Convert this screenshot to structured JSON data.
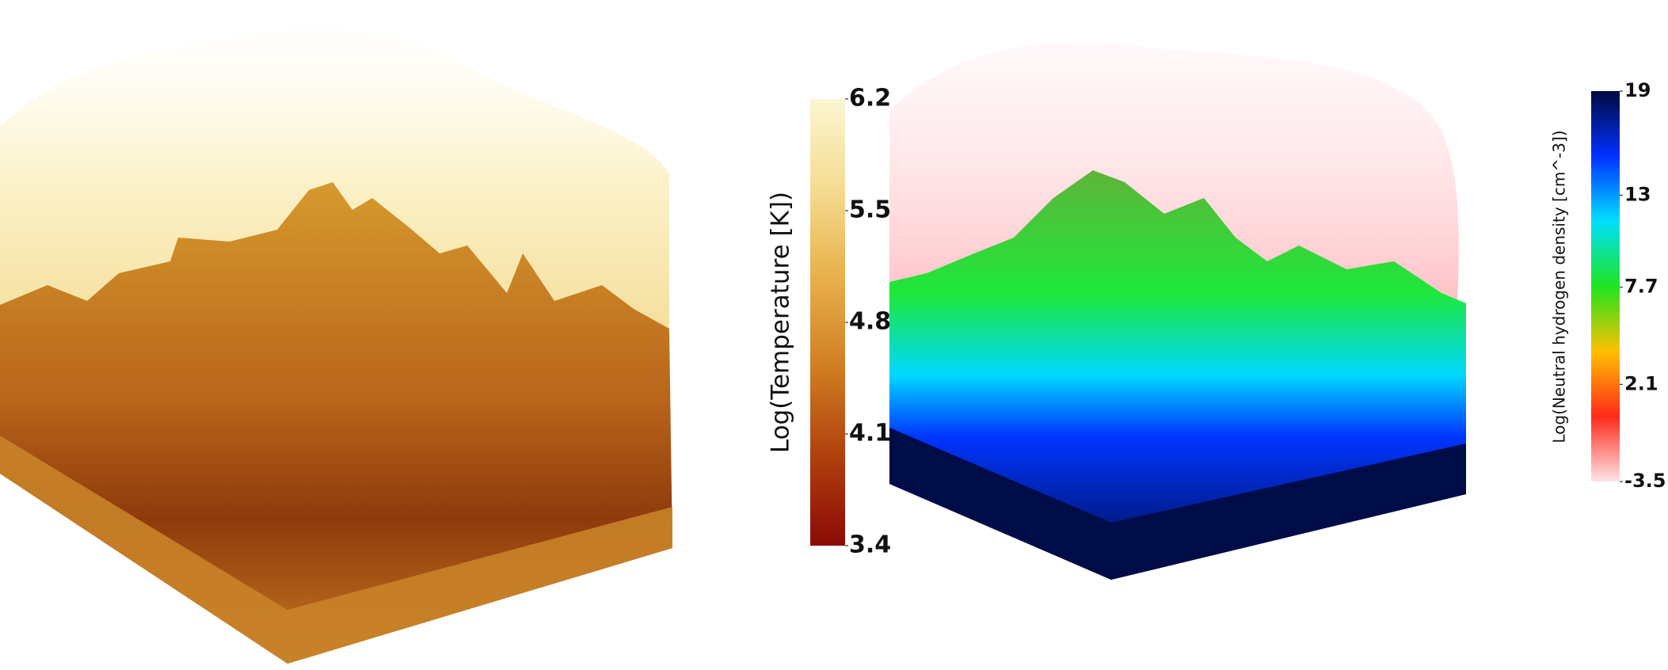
{
  "colorbars": [
    {
      "label": "Log(Temperature [K])",
      "lim": [
        3.4,
        6.2
      ],
      "ticks": [
        6.2,
        5.5,
        4.8,
        4.1,
        3.4
      ],
      "colors": [
        "#8b0a05",
        "#b0400e",
        "#d07e22",
        "#e8b04a",
        "#f5dc92",
        "#fbf6d2"
      ]
    },
    {
      "label": "Log(Neutral hydrogen density [cm^-3])",
      "lim": [
        -3.5,
        19
      ],
      "ticks": [
        19,
        13,
        7.7,
        2.1,
        -3.5
      ],
      "colors": [
        "#ffe4e8",
        "#ff2a1a",
        "#ffc000",
        "#1fe41f",
        "#00e0ff",
        "#0030ff",
        "#000a40"
      ]
    }
  ]
}
